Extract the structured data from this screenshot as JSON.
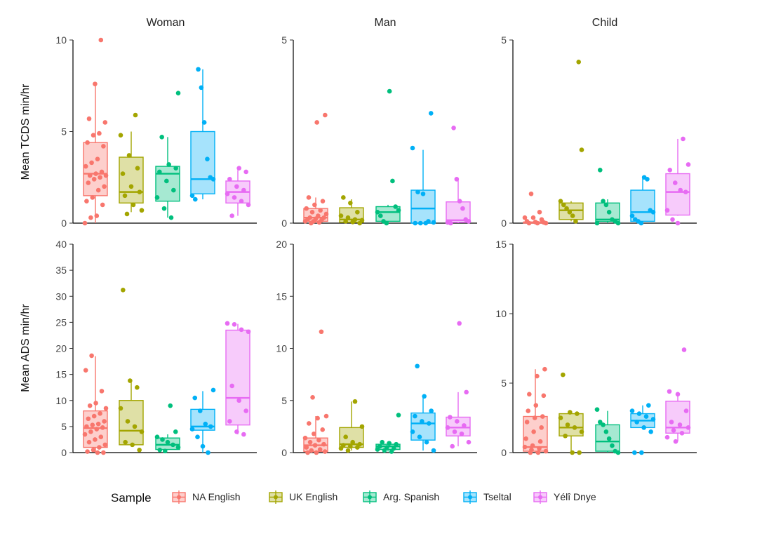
{
  "chart_data": {
    "type": "boxplot",
    "panel_titles": [
      "Woman",
      "Man",
      "Child"
    ],
    "row_labels": [
      "Mean TCDS min/hr",
      "Mean ADS min/hr"
    ],
    "legend": {
      "title": "Sample",
      "entries": [
        {
          "name": "NA English",
          "color": "#F8766D"
        },
        {
          "name": "UK English",
          "color": "#A3A500"
        },
        {
          "name": "Arg. Spanish",
          "color": "#00BF7D"
        },
        {
          "name": "Tseltal",
          "color": "#00B0F6"
        },
        {
          "name": "Yélî Dnye",
          "color": "#E76BF3"
        }
      ]
    },
    "panels": [
      {
        "row": 0,
        "col": 0,
        "ylim": [
          0,
          10
        ],
        "yticks": [
          0,
          5,
          10
        ],
        "groups": [
          {
            "name": "NA English",
            "min": 0,
            "q1": 1.5,
            "median": 2.7,
            "q3": 4.4,
            "max": 7.5,
            "points": [
              0,
              0.3,
              0.4,
              1.0,
              1.2,
              1.4,
              1.8,
              2.0,
              2.2,
              2.4,
              2.5,
              2.6,
              2.6,
              2.7,
              2.8,
              3.1,
              3.3,
              3.5,
              4.2,
              4.4,
              4.8,
              4.9,
              5.5,
              5.7,
              7.6,
              10
            ]
          },
          {
            "name": "UK English",
            "min": 0.6,
            "q1": 1.1,
            "median": 1.7,
            "q3": 3.6,
            "max": 5.0,
            "points": [
              0.5,
              0.7,
              1.0,
              1.5,
              1.7,
              2.0,
              2.7,
              3.0,
              3.7,
              4.8,
              5.9
            ]
          },
          {
            "name": "Arg. Spanish",
            "min": 0.3,
            "q1": 1.2,
            "median": 2.7,
            "q3": 3.1,
            "max": 4.7,
            "points": [
              0.3,
              0.8,
              1.4,
              1.8,
              2.3,
              2.8,
              3.0,
              3.2,
              4.7,
              7.1
            ]
          },
          {
            "name": "Tseltal",
            "min": 1.3,
            "q1": 1.6,
            "median": 2.4,
            "q3": 5.0,
            "max": 8.4,
            "points": [
              1.3,
              1.5,
              2.4,
              2.5,
              3.5,
              5.5,
              7.4,
              8.4
            ]
          },
          {
            "name": "Yélî Dnye",
            "min": 0.4,
            "q1": 1.1,
            "median": 1.7,
            "q3": 2.3,
            "max": 2.9,
            "points": [
              0.4,
              1.0,
              1.2,
              1.4,
              1.6,
              1.8,
              2.0,
              2.4,
              2.8,
              3.0
            ]
          }
        ]
      },
      {
        "row": 0,
        "col": 1,
        "ylim": [
          0,
          5
        ],
        "yticks": [
          0,
          5
        ],
        "groups": [
          {
            "name": "NA English",
            "min": 0,
            "q1": 0.05,
            "median": 0.15,
            "q3": 0.4,
            "max": 0.7,
            "points": [
              0,
              0.02,
              0.05,
              0.05,
              0.08,
              0.1,
              0.12,
              0.15,
              0.15,
              0.2,
              0.25,
              0.3,
              0.35,
              0.4,
              0.5,
              0.6,
              0.7,
              2.75,
              2.95
            ]
          },
          {
            "name": "UK English",
            "min": 0,
            "q1": 0.02,
            "median": 0.1,
            "q3": 0.42,
            "max": 0.65,
            "points": [
              0,
              0.03,
              0.05,
              0.08,
              0.1,
              0.15,
              0.2,
              0.3,
              0.55,
              0.7
            ]
          },
          {
            "name": "Arg. Spanish",
            "min": 0,
            "q1": 0.05,
            "median": 0.3,
            "q3": 0.45,
            "max": 0.5,
            "points": [
              0,
              0.05,
              0.2,
              0.3,
              0.35,
              0.45,
              1.15,
              3.6
            ]
          },
          {
            "name": "Tseltal",
            "min": 0,
            "q1": 0,
            "median": 0.4,
            "q3": 0.9,
            "max": 2.0,
            "points": [
              0,
              0,
              0,
              0.02,
              0.05,
              0.8,
              0.85,
              2.05,
              3.0
            ]
          },
          {
            "name": "Yélî Dnye",
            "min": 0,
            "q1": 0.02,
            "median": 0.08,
            "q3": 0.58,
            "max": 1.2,
            "points": [
              0,
              0.02,
              0.05,
              0.1,
              0.4,
              0.6,
              1.2,
              2.6
            ]
          }
        ]
      },
      {
        "row": 0,
        "col": 2,
        "ylim": [
          0,
          5
        ],
        "yticks": [
          0,
          5
        ],
        "groups": [
          {
            "name": "NA English",
            "min": 0,
            "q1": 0,
            "median": 0.02,
            "q3": 0.03,
            "max": 0.08,
            "points": [
              0,
              0,
              0,
              0.02,
              0.03,
              0.05,
              0.1,
              0.15,
              0.15,
              0.3,
              0.8
            ]
          },
          {
            "name": "UK English",
            "min": 0.05,
            "q1": 0.1,
            "median": 0.35,
            "q3": 0.55,
            "max": 0.6,
            "points": [
              0.05,
              0.2,
              0.3,
              0.4,
              0.5,
              0.6,
              2.0,
              4.4
            ]
          },
          {
            "name": "Arg. Spanish",
            "min": 0,
            "q1": 0.05,
            "median": 0.1,
            "q3": 0.55,
            "max": 0.65,
            "points": [
              0,
              0,
              0.05,
              0.1,
              0.3,
              0.5,
              0.6,
              1.45
            ]
          },
          {
            "name": "Tseltal",
            "min": 0,
            "q1": 0.05,
            "median": 0.3,
            "q3": 0.9,
            "max": 1.25,
            "points": [
              0,
              0.05,
              0.1,
              0.2,
              0.3,
              0.35,
              1.2,
              1.25
            ]
          },
          {
            "name": "Yélî Dnye",
            "min": 0.2,
            "q1": 0.22,
            "median": 0.85,
            "q3": 1.35,
            "max": 2.3,
            "points": [
              0,
              0.1,
              0.35,
              0.85,
              0.9,
              1.1,
              1.45,
              1.6,
              2.3
            ]
          }
        ]
      },
      {
        "row": 1,
        "col": 0,
        "ylim": [
          0,
          40
        ],
        "yticks": [
          0,
          5,
          10,
          15,
          20,
          25,
          30,
          35,
          40
        ],
        "groups": [
          {
            "name": "NA English",
            "min": 0,
            "q1": 1.0,
            "median": 4.7,
            "q3": 8.0,
            "max": 18.5,
            "points": [
              0,
              0,
              0.2,
              0.5,
              1.0,
              1.5,
              2.0,
              2.5,
              3.0,
              3.5,
              4.0,
              4.5,
              4.8,
              5.0,
              5.3,
              5.5,
              6.0,
              6.5,
              7.0,
              7.5,
              8.5,
              9.0,
              9.5,
              11.8,
              15.8,
              18.6
            ]
          },
          {
            "name": "UK English",
            "min": 1.5,
            "q1": 1.5,
            "median": 4.2,
            "q3": 10.0,
            "max": 13.5,
            "points": [
              0.5,
              1.5,
              2.0,
              4.0,
              5.0,
              6.0,
              8.5,
              12.5,
              13.8,
              31.2
            ]
          },
          {
            "name": "Arg. Spanish",
            "min": 0.5,
            "q1": 0.6,
            "median": 1.5,
            "q3": 2.8,
            "max": 3.5,
            "points": [
              0.3,
              0.5,
              1.0,
              1.5,
              2.0,
              2.5,
              3.0,
              4.0,
              9.0
            ]
          },
          {
            "name": "Tseltal",
            "min": 0,
            "q1": 4.3,
            "median": 5.0,
            "q3": 8.3,
            "max": 11.8,
            "points": [
              0,
              1.2,
              3.0,
              4.5,
              5.0,
              5.5,
              8.0,
              10.5,
              12.0
            ]
          },
          {
            "name": "Yélî Dnye",
            "min": 3.5,
            "q1": 5.3,
            "median": 10.5,
            "q3": 23.5,
            "max": 24.7,
            "points": [
              3.5,
              4.0,
              6.0,
              8.0,
              10.0,
              12.8,
              23.2,
              23.6,
              24.6,
              24.8
            ]
          }
        ]
      },
      {
        "row": 1,
        "col": 1,
        "ylim": [
          0,
          20
        ],
        "yticks": [
          0,
          5,
          10,
          15,
          20
        ],
        "groups": [
          {
            "name": "NA English",
            "min": 0,
            "q1": 0.1,
            "median": 0.7,
            "q3": 1.4,
            "max": 3.5,
            "points": [
              0,
              0,
              0.1,
              0.2,
              0.3,
              0.5,
              0.7,
              0.8,
              1.0,
              1.2,
              1.4,
              1.8,
              2.2,
              2.8,
              3.3,
              3.5,
              5.3,
              11.6
            ]
          },
          {
            "name": "UK English",
            "min": 0.2,
            "q1": 0.5,
            "median": 0.8,
            "q3": 2.4,
            "max": 4.9,
            "points": [
              0.2,
              0.4,
              0.5,
              0.6,
              0.7,
              0.8,
              1.0,
              1.5,
              2.5,
              4.9
            ]
          },
          {
            "name": "Arg. Spanish",
            "min": 0.1,
            "q1": 0.3,
            "median": 0.6,
            "q3": 0.8,
            "max": 1.0,
            "points": [
              0.1,
              0.2,
              0.3,
              0.4,
              0.5,
              0.6,
              0.8,
              0.9,
              1.0,
              3.6
            ]
          },
          {
            "name": "Tseltal",
            "min": 0.2,
            "q1": 1.2,
            "median": 2.8,
            "q3": 3.8,
            "max": 5.4,
            "points": [
              0.2,
              1.0,
              1.5,
              2.0,
              2.8,
              3.0,
              3.5,
              4.0,
              5.4,
              8.3
            ]
          },
          {
            "name": "Yélî Dnye",
            "min": 0.6,
            "q1": 1.6,
            "median": 2.4,
            "q3": 3.4,
            "max": 5.8,
            "points": [
              0.6,
              1.0,
              1.8,
              2.0,
              2.4,
              2.6,
              3.0,
              3.4,
              5.8,
              12.4
            ]
          }
        ]
      },
      {
        "row": 1,
        "col": 2,
        "ylim": [
          0,
          15
        ],
        "yticks": [
          0,
          5,
          10,
          15
        ],
        "groups": [
          {
            "name": "NA English",
            "min": 0,
            "q1": 0.1,
            "median": 0.4,
            "q3": 2.6,
            "max": 6.0,
            "points": [
              0,
              0,
              0.1,
              0.2,
              0.3,
              0.4,
              0.5,
              0.8,
              1.0,
              1.5,
              1.8,
              2.2,
              2.5,
              2.6,
              3.0,
              3.4,
              4.1,
              4.2,
              5.5,
              6.0
            ]
          },
          {
            "name": "UK English",
            "min": 0,
            "q1": 1.2,
            "median": 1.8,
            "q3": 2.8,
            "max": 3.0,
            "points": [
              0,
              0,
              1.2,
              1.5,
              1.8,
              2.0,
              2.5,
              2.8,
              2.9,
              5.6
            ]
          },
          {
            "name": "Arg. Spanish",
            "min": 0,
            "q1": 0.1,
            "median": 0.8,
            "q3": 2.0,
            "max": 3.0,
            "points": [
              0,
              0.1,
              0.5,
              1.0,
              1.5,
              2.0,
              2.2,
              3.1
            ]
          },
          {
            "name": "Tseltal",
            "min": 1.8,
            "q1": 1.8,
            "median": 2.3,
            "q3": 2.8,
            "max": 3.4,
            "points": [
              0,
              0,
              1.5,
              1.8,
              2.2,
              2.4,
              2.6,
              2.8,
              3.0,
              3.4
            ]
          },
          {
            "name": "Yélî Dnye",
            "min": 0.8,
            "q1": 1.4,
            "median": 1.8,
            "q3": 3.7,
            "max": 4.2,
            "points": [
              0.8,
              1.1,
              1.4,
              1.6,
              1.8,
              2.0,
              2.2,
              3.0,
              4.2,
              4.4,
              7.4
            ]
          }
        ]
      }
    ]
  }
}
